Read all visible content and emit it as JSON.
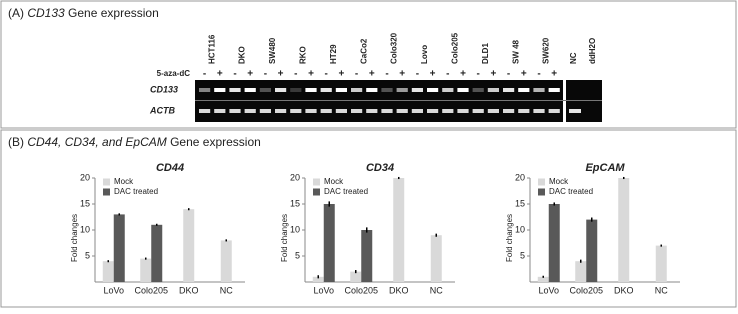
{
  "panel_a": {
    "label": "(A)",
    "gene": "CD133",
    "suffix": "Gene expression",
    "lanes": [
      {
        "name": "HCT116",
        "color": "#3a8fd0"
      },
      {
        "name": "DKO",
        "color": "#222222"
      },
      {
        "name": "SW480",
        "color": "#3a8fd0"
      },
      {
        "name": "RKO",
        "color": "#3a8fd0"
      },
      {
        "name": "HT29",
        "color": "#222222"
      },
      {
        "name": "CaCo2",
        "color": "#222222"
      },
      {
        "name": "Colo320",
        "color": "#222222"
      },
      {
        "name": "Lovo",
        "color": "#3a8fd0"
      },
      {
        "name": "Colo205",
        "color": "#222222"
      },
      {
        "name": "DLD1",
        "color": "#3a8fd0"
      },
      {
        "name": "SW 48",
        "color": "#222222"
      },
      {
        "name": "SW620",
        "color": "#222222"
      }
    ],
    "controls": [
      "NC",
      "ddH2O"
    ],
    "treatment": "5-aza-dC",
    "signs": [
      "-",
      "+",
      "-",
      "+",
      "-",
      "+",
      "-",
      "+",
      "-",
      "+",
      "-",
      "+",
      "-",
      "+",
      "-",
      "+",
      "-",
      "+",
      "-",
      "+",
      "-",
      "+",
      "-",
      "+"
    ],
    "rows": [
      "CD133",
      "ACTB"
    ]
  },
  "panel_b": {
    "label": "(B)",
    "genes": "CD44, CD34, and EpCAM",
    "suffix": "Gene expression"
  },
  "chart_data": [
    {
      "type": "bar",
      "title": "CD44",
      "y_label": "Fold changes",
      "categories": [
        "LoVo",
        "Colo205",
        "DKO",
        "NC"
      ],
      "series": [
        {
          "name": "Mock",
          "color": "#d9d9d9",
          "values": [
            4,
            4.5,
            14,
            8
          ],
          "errors": [
            0.2,
            0.2,
            0.2,
            0.2
          ]
        },
        {
          "name": "DAC treated",
          "color": "#595959",
          "values": [
            13,
            11,
            null,
            null
          ],
          "errors": [
            0.2,
            0.2,
            null,
            null
          ]
        }
      ],
      "ylim": [
        0,
        20
      ],
      "yticks": [
        5,
        10,
        15,
        20
      ]
    },
    {
      "type": "bar",
      "title": "CD34",
      "y_label": "Fold changes",
      "categories": [
        "LoVo",
        "Colo205",
        "DKO",
        "NC"
      ],
      "series": [
        {
          "name": "Mock",
          "color": "#d9d9d9",
          "values": [
            1,
            2,
            20,
            9
          ],
          "errors": [
            0.3,
            0.3,
            0.2,
            0.3
          ]
        },
        {
          "name": "DAC treated",
          "color": "#595959",
          "values": [
            15,
            10,
            null,
            null
          ],
          "errors": [
            0.5,
            0.5,
            null,
            null
          ]
        }
      ],
      "ylim": [
        0,
        20
      ],
      "yticks": [
        5,
        10,
        15,
        20
      ]
    },
    {
      "type": "bar",
      "title": "EpCAM",
      "y_label": "Fold changes",
      "categories": [
        "LoVo",
        "Colo205",
        "DKO",
        "NC"
      ],
      "series": [
        {
          "name": "Mock",
          "color": "#d9d9d9",
          "values": [
            1,
            4,
            20,
            7
          ],
          "errors": [
            0.2,
            0.3,
            0.2,
            0.2
          ]
        },
        {
          "name": "DAC treated",
          "color": "#595959",
          "values": [
            15,
            12,
            null,
            null
          ],
          "errors": [
            0.3,
            0.4,
            null,
            null
          ]
        }
      ],
      "ylim": [
        0,
        20
      ],
      "yticks": [
        5,
        10,
        15,
        20
      ]
    }
  ]
}
